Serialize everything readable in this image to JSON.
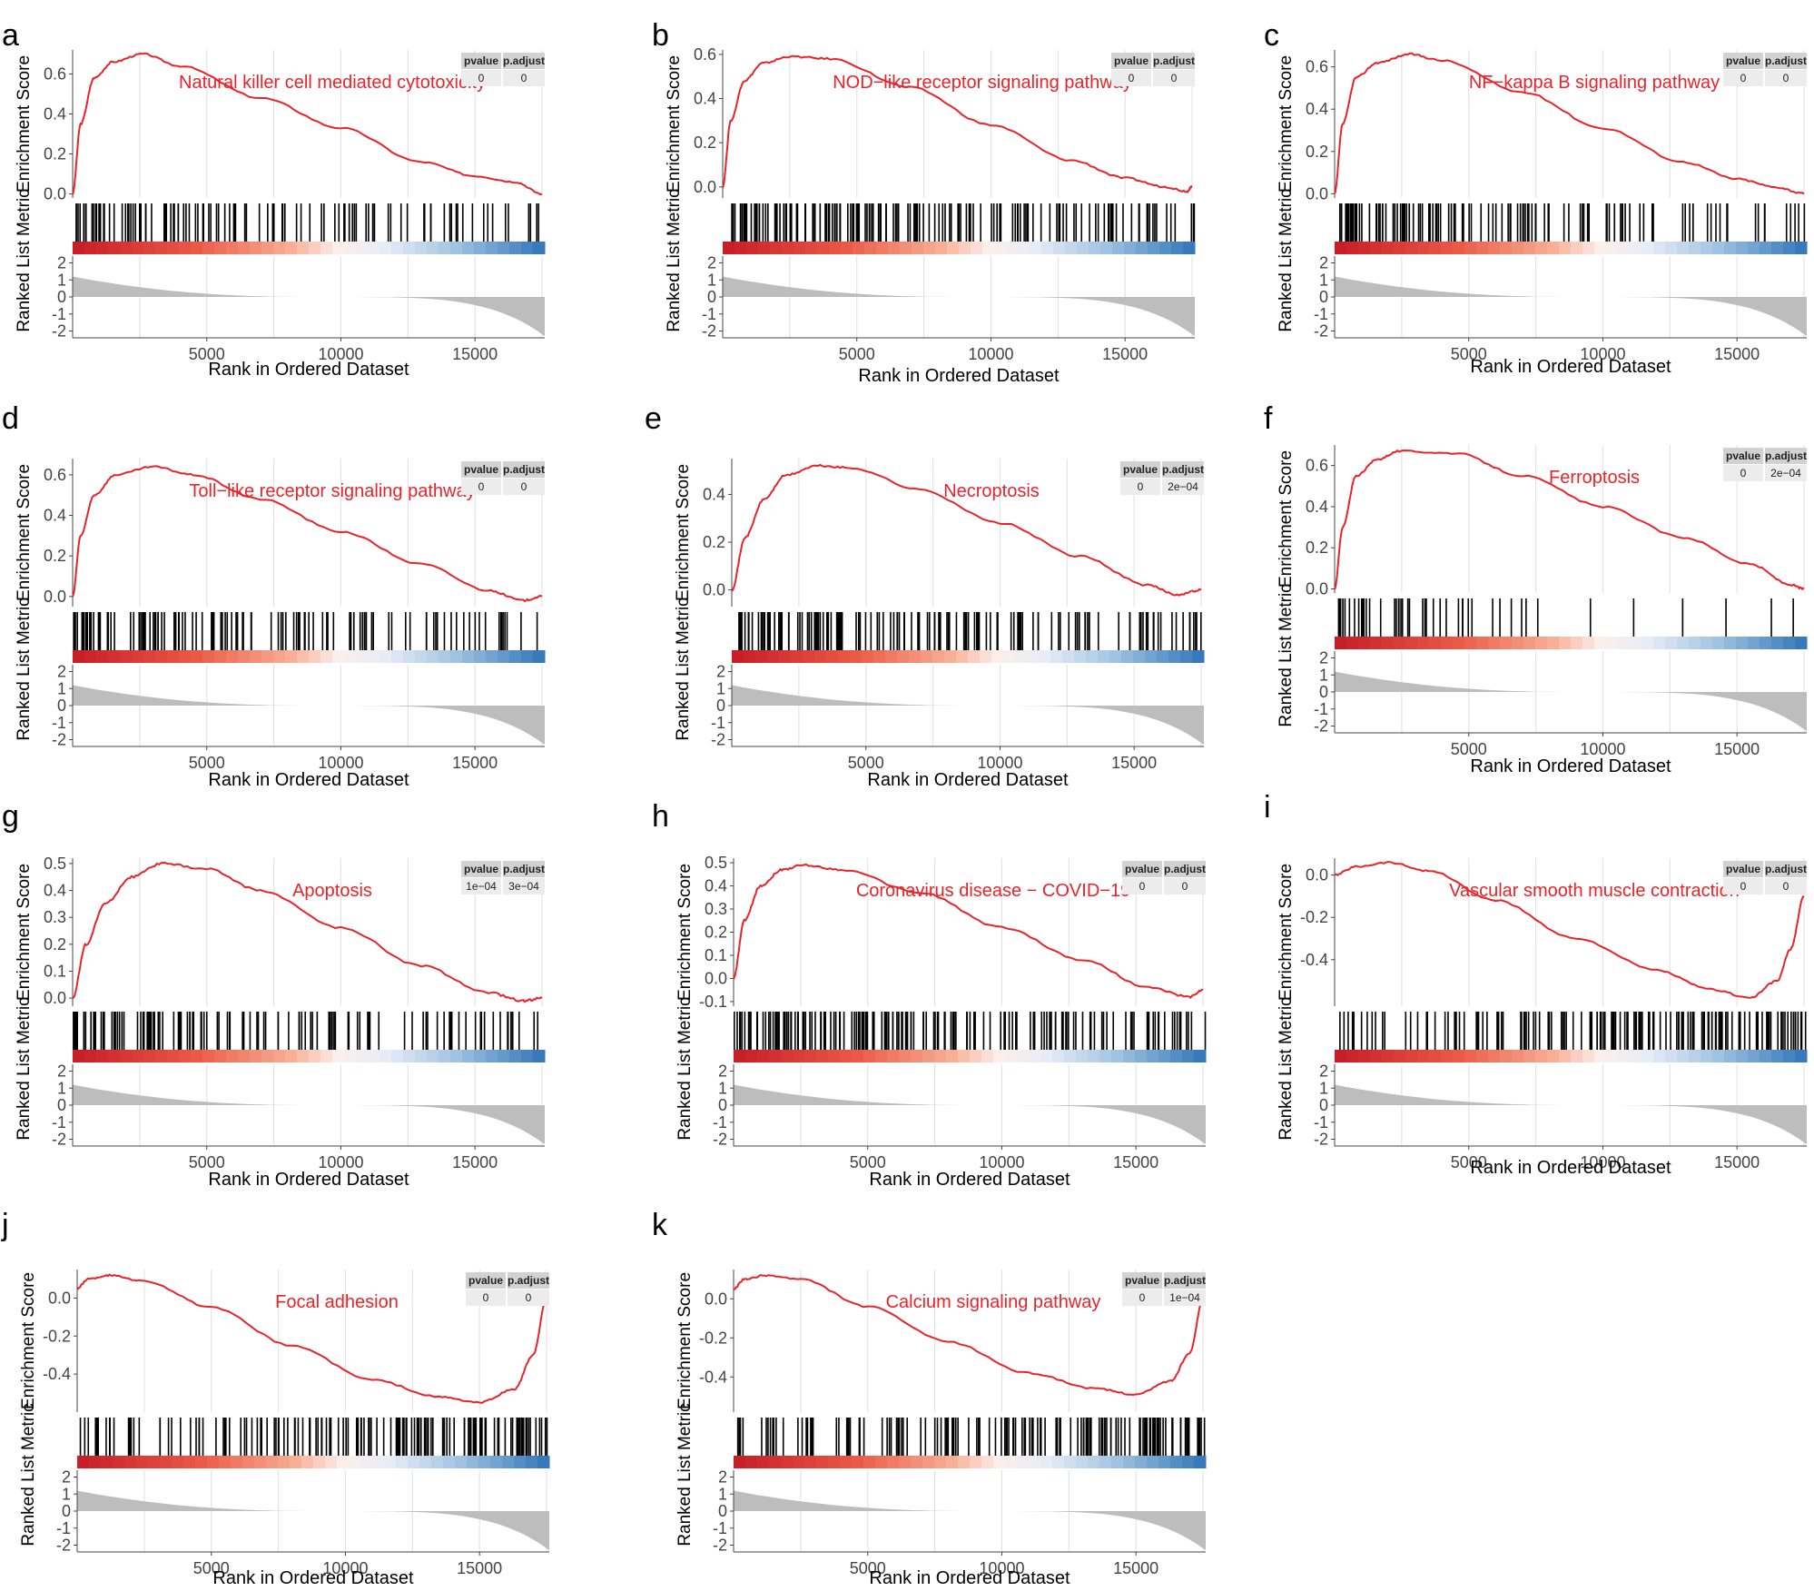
{
  "figure": {
    "shared": {
      "es_ylabel": "Enrichment Score",
      "rl_ylabel": "Ranked List Metric",
      "xlabel": "Rank in Ordered Dataset",
      "table_headers": [
        "pvalue",
        "p.adjust"
      ],
      "x_ticks": [
        5000,
        10000,
        15000
      ],
      "rl_ticks": [
        2,
        1,
        0,
        -1,
        -2
      ],
      "xlim": [
        0,
        17600
      ],
      "colors": {
        "curve": "#e8242a",
        "hit": "#000000",
        "grid": "#e4e4e4",
        "metric": "#bdbdbd",
        "header_bg": "#d2d2d2",
        "cell_bg": "#ececec"
      }
    }
  },
  "chart_data": [
    {
      "type": "line",
      "panel": "a",
      "title": "Natural killer cell mediated cytotoxicity",
      "xlabel": "Rank in Ordered Dataset",
      "ylabel": "Enrichment Score",
      "ylim": [
        -0.02,
        0.72
      ],
      "yticks": [
        0.0,
        0.2,
        0.4,
        0.6
      ],
      "x": [
        0,
        300,
        800,
        1500,
        2600,
        4000,
        7000,
        10000,
        13000,
        15000,
        16500,
        17500
      ],
      "y": [
        0.0,
        0.35,
        0.58,
        0.66,
        0.7,
        0.64,
        0.48,
        0.33,
        0.16,
        0.09,
        0.06,
        0.0
      ],
      "pvalue": "0",
      "p_adjust": "0",
      "hit_density": [
        0.9,
        0.8,
        0.7,
        0.45,
        0.4,
        0.5,
        0.4,
        0.3,
        0.35,
        0.25
      ]
    },
    {
      "type": "line",
      "panel": "b",
      "title": "NOD−like receptor signaling pathway",
      "xlabel": "Rank in Ordered Dataset",
      "ylabel": "Enrichment Score",
      "ylim": [
        -0.05,
        0.62
      ],
      "yticks": [
        0.0,
        0.2,
        0.4,
        0.6
      ],
      "x": [
        0,
        300,
        800,
        1500,
        2500,
        4000,
        7000,
        10000,
        13000,
        15000,
        16500,
        17300,
        17500
      ],
      "y": [
        0.0,
        0.3,
        0.48,
        0.56,
        0.59,
        0.58,
        0.45,
        0.28,
        0.12,
        0.04,
        0.0,
        -0.02,
        0.0
      ],
      "pvalue": "0",
      "p_adjust": "0",
      "hit_density": [
        1.0,
        0.95,
        0.9,
        0.75,
        0.7,
        0.65,
        0.55,
        0.5,
        0.6,
        0.55
      ]
    },
    {
      "type": "line",
      "panel": "c",
      "title": "NF−kappa B signaling pathway",
      "xlabel": "Rank in Ordered Dataset",
      "ylabel": "Enrichment Score",
      "ylim": [
        -0.02,
        0.68
      ],
      "yticks": [
        0.0,
        0.2,
        0.4,
        0.6
      ],
      "x": [
        0,
        300,
        800,
        1600,
        2800,
        4000,
        7000,
        10000,
        13000,
        15000,
        16500,
        17500
      ],
      "y": [
        0.0,
        0.33,
        0.55,
        0.62,
        0.66,
        0.63,
        0.48,
        0.31,
        0.15,
        0.07,
        0.03,
        0.0
      ],
      "pvalue": "0",
      "p_adjust": "0",
      "hit_density": [
        1.0,
        0.85,
        0.7,
        0.55,
        0.5,
        0.45,
        0.4,
        0.3,
        0.25,
        0.3
      ]
    },
    {
      "type": "line",
      "panel": "d",
      "title": "Toll−like receptor signaling pathway",
      "xlabel": "Rank in Ordered Dataset",
      "ylabel": "Enrichment Score",
      "ylim": [
        -0.05,
        0.68
      ],
      "yticks": [
        0.0,
        0.2,
        0.4,
        0.6
      ],
      "x": [
        0,
        300,
        800,
        1600,
        3000,
        4500,
        7000,
        10000,
        13000,
        15500,
        16800,
        17500
      ],
      "y": [
        0.0,
        0.3,
        0.5,
        0.6,
        0.64,
        0.6,
        0.48,
        0.32,
        0.16,
        0.03,
        -0.02,
        0.0
      ],
      "pvalue": "0",
      "p_adjust": "0",
      "hit_density": [
        1.0,
        0.8,
        0.7,
        0.55,
        0.5,
        0.45,
        0.4,
        0.35,
        0.3,
        0.35
      ]
    },
    {
      "type": "line",
      "panel": "e",
      "title": "Necroptosis",
      "xlabel": "Rank in Ordered Dataset",
      "ylabel": "Enrichment Score",
      "ylim": [
        -0.07,
        0.55
      ],
      "yticks": [
        0.0,
        0.2,
        0.4
      ],
      "x": [
        0,
        500,
        1200,
        2000,
        3200,
        4500,
        7000,
        10000,
        13000,
        15500,
        16600,
        17500
      ],
      "y": [
        0.0,
        0.22,
        0.38,
        0.48,
        0.52,
        0.51,
        0.42,
        0.28,
        0.14,
        0.02,
        -0.02,
        0.0
      ],
      "pvalue": "0",
      "p_adjust": "2e−04",
      "hit_density": [
        1.0,
        0.9,
        0.8,
        0.7,
        0.65,
        0.6,
        0.55,
        0.5,
        0.45,
        0.5
      ]
    },
    {
      "type": "line",
      "panel": "f",
      "title": "Ferroptosis",
      "xlabel": "Rank in Ordered Dataset",
      "ylabel": "Enrichment Score",
      "ylim": [
        -0.02,
        0.7
      ],
      "yticks": [
        0.0,
        0.2,
        0.4,
        0.6
      ],
      "x": [
        0,
        300,
        800,
        1600,
        2400,
        4500,
        7000,
        10000,
        13000,
        15500,
        17000,
        17500
      ],
      "y": [
        0.0,
        0.3,
        0.55,
        0.63,
        0.67,
        0.66,
        0.55,
        0.4,
        0.25,
        0.12,
        0.02,
        0.0
      ],
      "pvalue": "0",
      "p_adjust": "2e−04",
      "hit_density": [
        0.7,
        0.5,
        0.35,
        0.2,
        0.1,
        0.05,
        0.05,
        0.05,
        0.05,
        0.08
      ]
    },
    {
      "type": "line",
      "panel": "g",
      "title": "Apoptosis",
      "xlabel": "Rank in Ordered Dataset",
      "ylabel": "Enrichment Score",
      "ylim": [
        -0.03,
        0.52
      ],
      "yticks": [
        0.0,
        0.1,
        0.2,
        0.3,
        0.4,
        0.5
      ],
      "x": [
        0,
        500,
        1200,
        2200,
        3300,
        5000,
        7000,
        10000,
        13000,
        15500,
        16800,
        17500
      ],
      "y": [
        0.0,
        0.2,
        0.35,
        0.45,
        0.5,
        0.48,
        0.4,
        0.26,
        0.12,
        0.02,
        -0.01,
        0.0
      ],
      "pvalue": "1e−04",
      "p_adjust": "3e−04",
      "hit_density": [
        1.0,
        0.85,
        0.7,
        0.5,
        0.4,
        0.5,
        0.4,
        0.35,
        0.45,
        0.4
      ]
    },
    {
      "type": "line",
      "panel": "h",
      "title": "Coronavirus disease − COVID−19",
      "xlabel": "Rank in Ordered Dataset",
      "ylabel": "Enrichment Score",
      "ylim": [
        -0.12,
        0.52
      ],
      "yticks": [
        -0.1,
        0.0,
        0.1,
        0.2,
        0.3,
        0.4,
        0.5
      ],
      "x": [
        0,
        400,
        1000,
        1800,
        2600,
        4000,
        7000,
        10000,
        13000,
        15500,
        17000,
        17500
      ],
      "y": [
        0.0,
        0.25,
        0.4,
        0.47,
        0.49,
        0.47,
        0.37,
        0.22,
        0.08,
        -0.04,
        -0.08,
        -0.05
      ],
      "pvalue": "0",
      "p_adjust": "0",
      "hit_density": [
        1.0,
        0.95,
        0.9,
        0.85,
        0.75,
        0.7,
        0.6,
        0.55,
        0.5,
        0.55
      ]
    },
    {
      "type": "line",
      "panel": "i",
      "title": "Vascular smooth muscle contraction",
      "xlabel": "Rank in Ordered Dataset",
      "ylabel": "Enrichment Score",
      "ylim": [
        -0.62,
        0.08
      ],
      "yticks": [
        0.0,
        -0.2,
        -0.4
      ],
      "x": [
        0,
        800,
        2000,
        3500,
        6000,
        9000,
        12000,
        14000,
        15500,
        16500,
        17000,
        17500
      ],
      "y": [
        0.0,
        0.04,
        0.06,
        0.02,
        -0.12,
        -0.3,
        -0.45,
        -0.54,
        -0.58,
        -0.5,
        -0.35,
        -0.1
      ],
      "pvalue": "0",
      "p_adjust": "0",
      "hit_density": [
        0.4,
        0.3,
        0.35,
        0.55,
        0.7,
        0.75,
        0.85,
        0.9,
        0.95,
        1.0
      ]
    },
    {
      "type": "line",
      "panel": "j",
      "title": "Focal adhesion",
      "xlabel": "Rank in Ordered Dataset",
      "ylabel": "Enrichment Score",
      "ylim": [
        -0.6,
        0.15
      ],
      "yticks": [
        0.0,
        -0.2,
        -0.4
      ],
      "x": [
        0,
        400,
        1200,
        2500,
        5000,
        8000,
        11000,
        13500,
        15000,
        16300,
        17000,
        17500
      ],
      "y": [
        0.05,
        0.1,
        0.12,
        0.09,
        -0.05,
        -0.25,
        -0.43,
        -0.52,
        -0.55,
        -0.48,
        -0.3,
        0.0
      ],
      "pvalue": "0",
      "p_adjust": "0",
      "hit_density": [
        0.45,
        0.4,
        0.35,
        0.5,
        0.6,
        0.65,
        0.8,
        0.9,
        0.95,
        1.0
      ]
    },
    {
      "type": "line",
      "panel": "k",
      "title": "Calcium signaling pathway",
      "xlabel": "Rank in Ordered Dataset",
      "ylabel": "Enrichment Score",
      "ylim": [
        -0.58,
        0.15
      ],
      "yticks": [
        0.0,
        -0.2,
        -0.4
      ],
      "x": [
        0,
        400,
        1200,
        2500,
        5000,
        8000,
        11000,
        13500,
        15000,
        16300,
        17000,
        17500
      ],
      "y": [
        0.05,
        0.1,
        0.12,
        0.1,
        -0.04,
        -0.22,
        -0.38,
        -0.46,
        -0.49,
        -0.42,
        -0.28,
        0.0
      ],
      "pvalue": "0",
      "p_adjust": "1e−04",
      "hit_density": [
        0.5,
        0.45,
        0.4,
        0.5,
        0.6,
        0.7,
        0.8,
        0.9,
        0.95,
        1.0
      ]
    }
  ]
}
